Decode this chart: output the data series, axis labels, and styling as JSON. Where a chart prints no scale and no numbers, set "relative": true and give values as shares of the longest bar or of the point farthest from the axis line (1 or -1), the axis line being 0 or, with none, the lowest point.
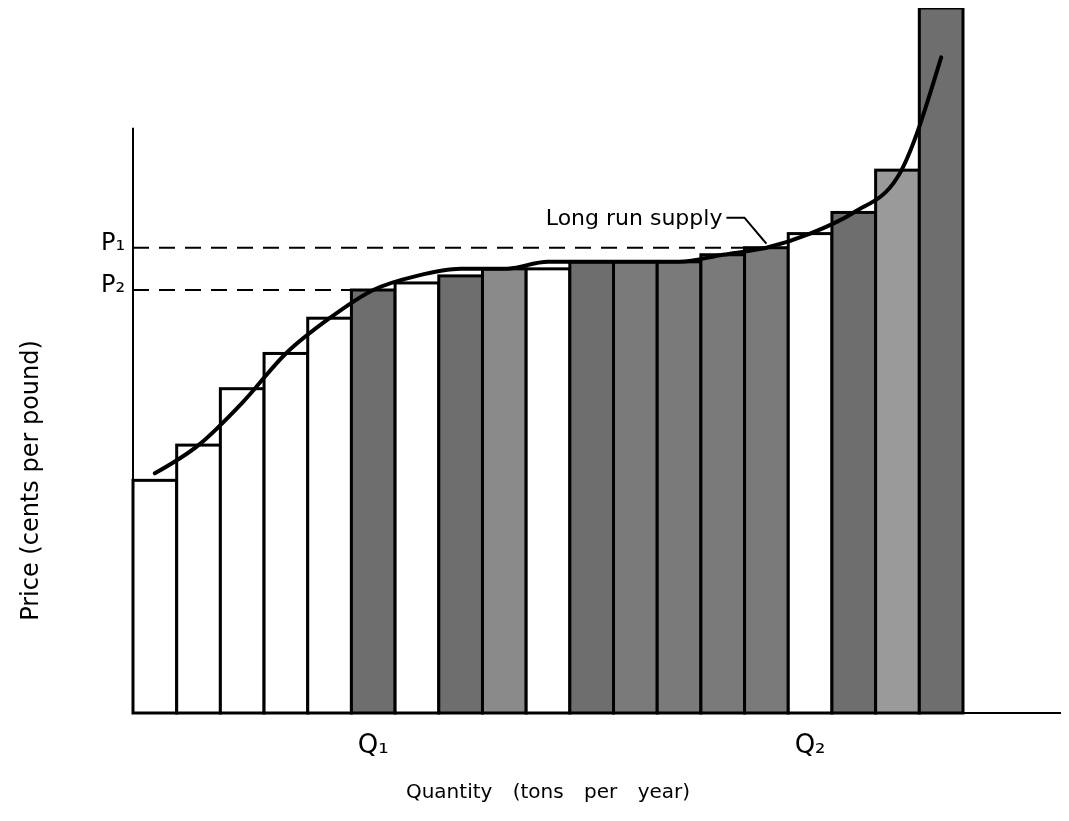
{
  "chart_data": {
    "type": "bar",
    "relative": true,
    "xlabel": "Quantity (tons per year)",
    "ylabel": "Price (cents per pound)",
    "categories": [
      null,
      null,
      null,
      null,
      null,
      "Q₁",
      null,
      null,
      null,
      null,
      null,
      null,
      null,
      null,
      null,
      "Q₂",
      null,
      null,
      null
    ],
    "values": [
      0.33,
      0.38,
      0.46,
      0.51,
      0.56,
      0.6,
      0.61,
      0.62,
      0.63,
      0.63,
      0.64,
      0.64,
      0.64,
      0.65,
      0.66,
      0.68,
      0.71,
      0.77,
      1
    ],
    "colors": [
      "#ffffff",
      "#ffffff",
      "#ffffff",
      "#ffffff",
      "#ffffff",
      "#6e6e6e",
      "#ffffff",
      "#6e6e6e",
      "#8a8a8a",
      "#ffffff",
      "#6e6e6e",
      "#7a7a7a",
      "#7a7a7a",
      "#7a7a7a",
      "#7a7a7a",
      "#ffffff",
      "#6e6e6e",
      "#9a9a9a",
      "#6e6e6e"
    ],
    "series": [
      {
        "name": "Long run supply",
        "type": "line",
        "color": "#000000",
        "values": [
          0.34,
          0.38,
          0.44,
          0.51,
          0.56,
          0.6,
          0.62,
          0.63,
          0.63,
          0.64,
          0.64,
          0.64,
          0.64,
          0.65,
          0.66,
          0.68,
          0.71,
          0.76,
          0.93
        ]
      }
    ],
    "ref_lines": [
      {
        "axis": "y",
        "value": 0.66,
        "label": "P₁",
        "line_style": "dashed"
      },
      {
        "axis": "y",
        "value": 0.6,
        "label": "P₂",
        "line_style": "dashed"
      }
    ]
  }
}
